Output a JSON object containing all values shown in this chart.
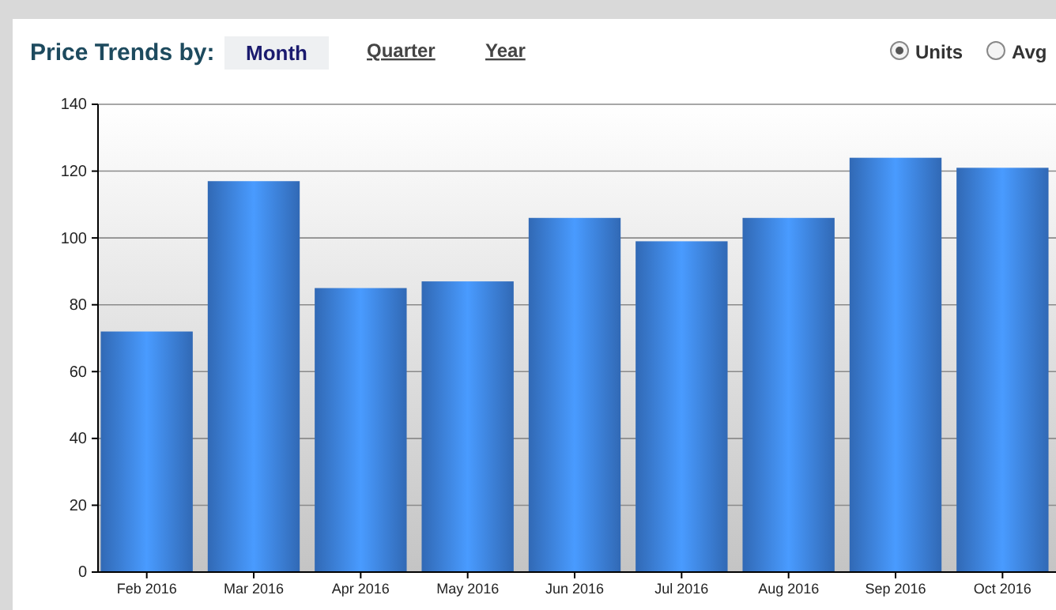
{
  "chart_data": {
    "type": "bar",
    "title": "Price Trends by:",
    "annotations": [
      "Month",
      "Quarter",
      "Year",
      "Units",
      "Avg"
    ],
    "categories": [
      "Feb 2016",
      "Mar 2016",
      "Apr 2016",
      "May 2016",
      "Jun 2016",
      "Jul 2016",
      "Aug 2016",
      "Sep 2016",
      "Oct 2016"
    ],
    "values": [
      72,
      117,
      85,
      87,
      106,
      99,
      106,
      124,
      121
    ],
    "color": "#3d82e0",
    "ylim": [
      0,
      140
    ],
    "yticks": [
      0,
      20,
      40,
      60,
      80,
      100,
      120,
      140
    ],
    "grid": "y"
  }
}
